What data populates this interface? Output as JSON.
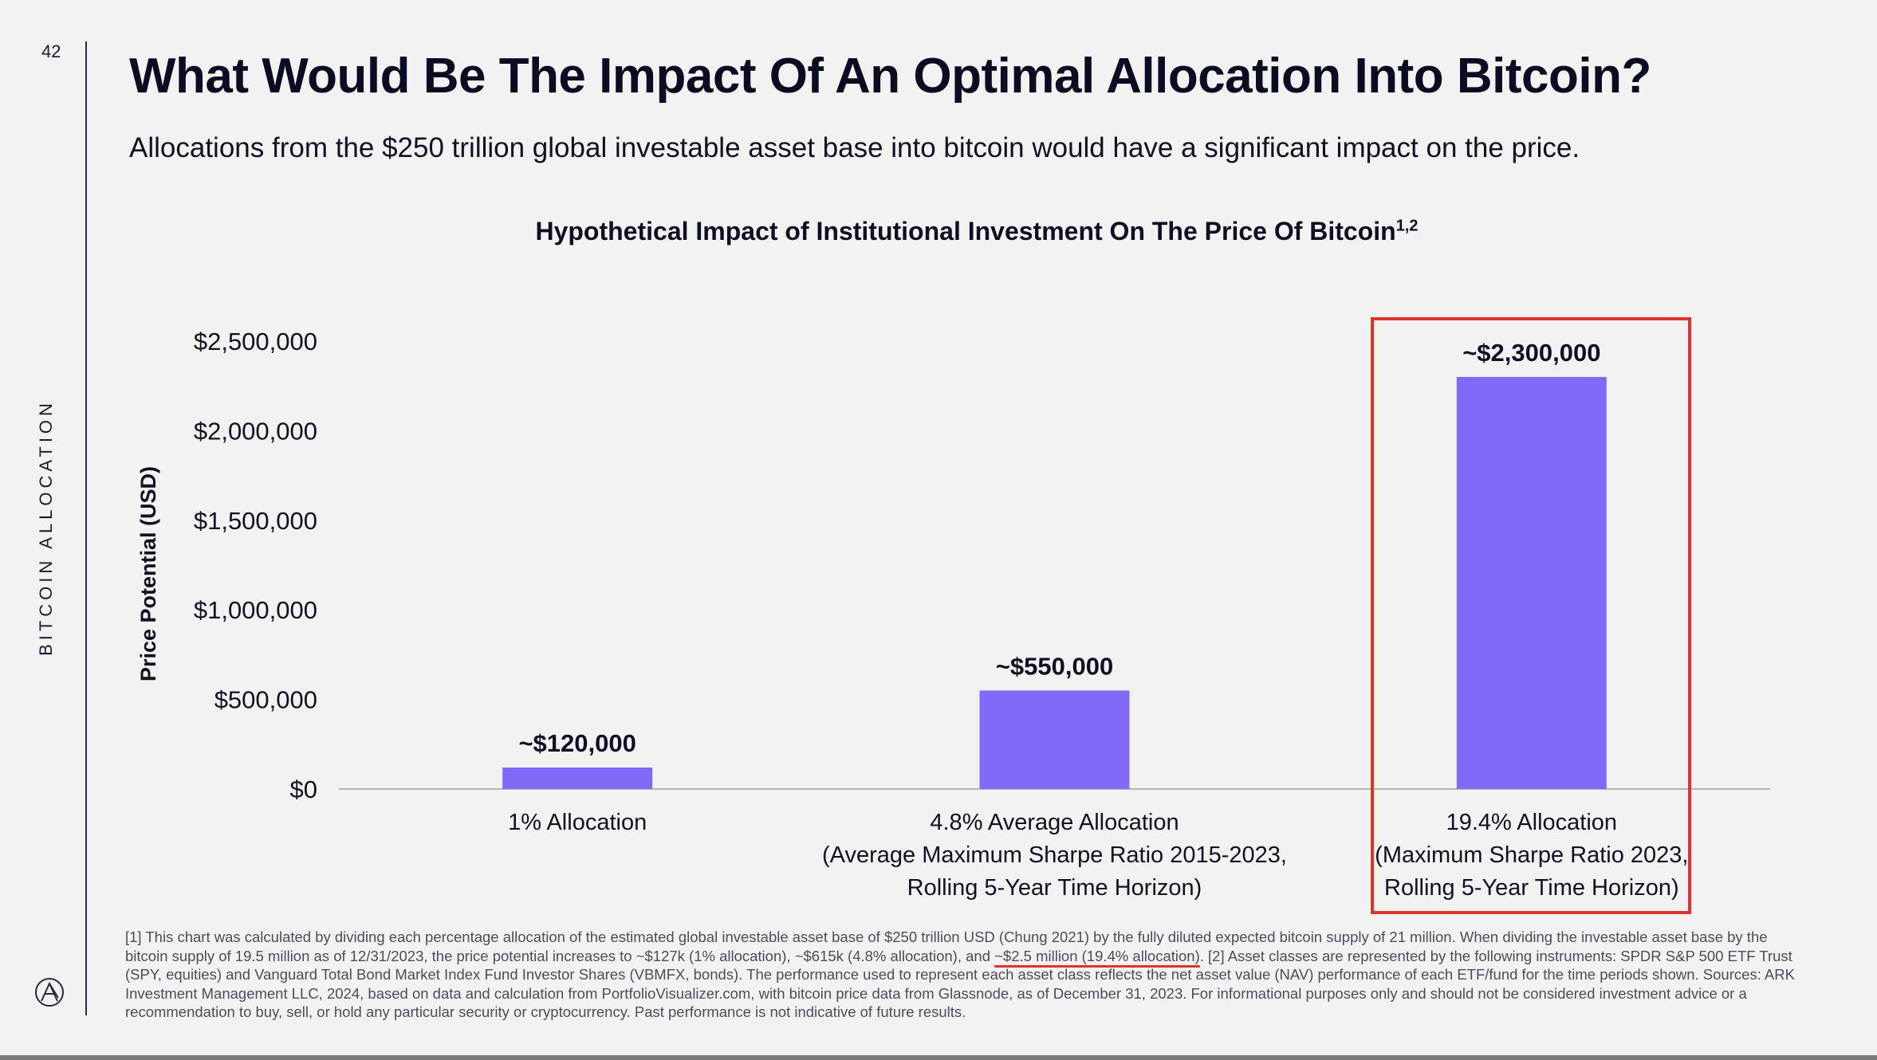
{
  "page": {
    "number": "42",
    "section_label": "BITCOIN ALLOCATION",
    "title": "What Would Be The Impact Of An Optimal Allocation Into Bitcoin?",
    "subtitle": "Allocations from the $250 trillion global investable asset base into bitcoin would have a significant impact on the price.",
    "logo_icon": "ark-logo-icon"
  },
  "chart_data": {
    "type": "bar",
    "title": "Hypothetical Impact of Institutional Investment On The Price Of Bitcoin",
    "title_superscript": "1,2",
    "ylabel": "Price Potential (USD)",
    "xlabel": "",
    "ylim": [
      0,
      2500000
    ],
    "yticks": [
      0,
      500000,
      1000000,
      1500000,
      2000000,
      2500000
    ],
    "ytick_labels": [
      "$0",
      "$500,000",
      "$1,000,000",
      "$1,500,000",
      "$2,000,000",
      "$2,500,000"
    ],
    "categories": [
      [
        "1% Allocation"
      ],
      [
        "4.8% Average Allocation",
        "(Average Maximum Sharpe Ratio 2015-2023,",
        "Rolling 5-Year Time Horizon)"
      ],
      [
        "19.4% Allocation",
        "(Maximum Sharpe Ratio 2023,",
        "Rolling 5-Year Time Horizon)"
      ]
    ],
    "values": [
      120000,
      550000,
      2300000
    ],
    "data_labels": [
      "~$120,000",
      "~$550,000",
      "~$2,300,000"
    ],
    "bar_color": "#8369fa",
    "highlight_index": 2,
    "highlight_color": "#e0332b",
    "grid": false,
    "legend": "none"
  },
  "footnote": {
    "part1": "[1] This chart was calculated by dividing each percentage allocation of the estimated global investable asset base of $250 trillion USD (Chung 2021) by the fully diluted expected bitcoin supply of 21 million. When dividing the investable asset base by the bitcoin supply of 19.5 million as of 12/31/2023, the price potential increases to ~$127k (1% allocation), ~$615k (4.8% allocation), and ",
    "highlight": "~$2.5 million (19.4% allocation)",
    "part2": ". [2] Asset classes are represented by the following instruments: SPDR S&P 500 ETF Trust (SPY, equities) and Vanguard Total Bond Market Index Fund Investor Shares (VBMFX, bonds). The performance used to represent each asset class reflects the net asset value (NAV) performance of each ETF/fund for the time periods shown. Sources: ARK Investment Management LLC, 2024, based on data and calculation from PortfolioVisualizer.com, with bitcoin price data from Glassnode, as of December 31, 2023. For informational purposes only and should not be considered investment advice or a recommendation to buy, sell, or hold any particular security or cryptocurrency. Past performance is not indicative of future results."
  }
}
